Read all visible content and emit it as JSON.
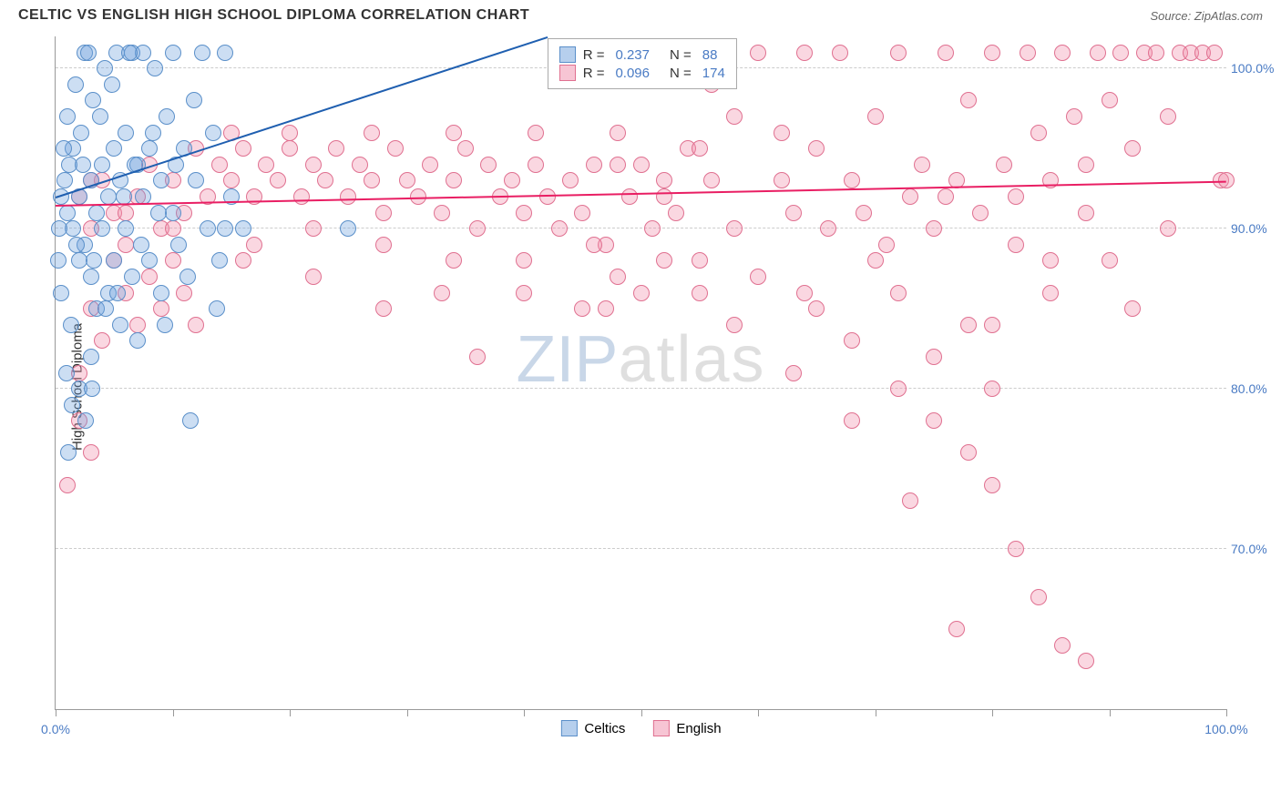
{
  "header": {
    "title": "CELTIC VS ENGLISH HIGH SCHOOL DIPLOMA CORRELATION CHART",
    "source": "Source: ZipAtlas.com"
  },
  "chart": {
    "type": "scatter",
    "ylabel": "High School Diploma",
    "xlim": [
      0,
      100
    ],
    "ylim": [
      60,
      102
    ],
    "ytick_values": [
      70,
      80,
      90,
      100
    ],
    "ytick_labels": [
      "70.0%",
      "80.0%",
      "90.0%",
      "100.0%"
    ],
    "xtick_positions": [
      0,
      10,
      20,
      30,
      40,
      50,
      60,
      70,
      80,
      90,
      100
    ],
    "xtick_labels_shown": {
      "0": "0.0%",
      "100": "100.0%"
    },
    "background_color": "#ffffff",
    "grid_color": "#cccccc",
    "axis_color": "#999999",
    "tick_label_color": "#4a7bc4",
    "marker_radius": 9,
    "marker_opacity": 0.5,
    "watermark": {
      "part1": "ZIP",
      "part2": "atlas"
    }
  },
  "series": {
    "celtics": {
      "label": "Celtics",
      "color_fill": "rgba(110,160,220,0.35)",
      "color_stroke": "#5a8fc9",
      "trend_color": "#1f5fb0",
      "R": "0.237",
      "N": "88",
      "trend": {
        "x1": 0,
        "y1": 92,
        "x2": 42,
        "y2": 102
      },
      "points": [
        [
          0.5,
          92
        ],
        [
          0.8,
          93
        ],
        [
          1,
          91
        ],
        [
          1.2,
          94
        ],
        [
          1.5,
          90
        ],
        [
          1.5,
          95
        ],
        [
          2,
          92
        ],
        [
          2,
          88
        ],
        [
          2.2,
          96
        ],
        [
          2.5,
          89
        ],
        [
          2.5,
          101
        ],
        [
          3,
          93
        ],
        [
          3,
          87
        ],
        [
          3.2,
          98
        ],
        [
          3.5,
          91
        ],
        [
          3.5,
          85
        ],
        [
          4,
          94
        ],
        [
          4,
          90
        ],
        [
          4.2,
          100
        ],
        [
          4.5,
          92
        ],
        [
          4.5,
          86
        ],
        [
          5,
          95
        ],
        [
          5,
          88
        ],
        [
          5.2,
          101
        ],
        [
          5.5,
          93
        ],
        [
          5.5,
          84
        ],
        [
          6,
          96
        ],
        [
          6,
          90
        ],
        [
          6.5,
          87
        ],
        [
          6.5,
          101
        ],
        [
          7,
          94
        ],
        [
          7,
          83
        ],
        [
          7.5,
          92
        ],
        [
          7.5,
          101
        ],
        [
          8,
          95
        ],
        [
          8,
          88
        ],
        [
          8.5,
          100
        ],
        [
          9,
          93
        ],
        [
          9,
          86
        ],
        [
          9.5,
          97
        ],
        [
          10,
          91
        ],
        [
          10,
          101
        ],
        [
          10.5,
          89
        ],
        [
          11,
          95
        ],
        [
          11.5,
          78
        ],
        [
          12,
          93
        ],
        [
          12.5,
          101
        ],
        [
          13,
          90
        ],
        [
          13.5,
          96
        ],
        [
          14,
          88
        ],
        [
          14.5,
          101
        ],
        [
          15,
          92
        ],
        [
          16,
          90
        ],
        [
          2,
          80
        ],
        [
          3,
          82
        ],
        [
          1,
          97
        ],
        [
          0.5,
          86
        ],
        [
          1.8,
          89
        ],
        [
          2.3,
          94
        ],
        [
          3.8,
          97
        ],
        [
          4.3,
          85
        ],
        [
          5.8,
          92
        ],
        [
          6.3,
          101
        ],
        [
          7.3,
          89
        ],
        [
          8.3,
          96
        ],
        [
          9.3,
          84
        ],
        [
          10.3,
          94
        ],
        [
          11.3,
          87
        ],
        [
          2.8,
          101
        ],
        [
          1.3,
          84
        ],
        [
          0.3,
          90
        ],
        [
          0.7,
          95
        ],
        [
          1.7,
          99
        ],
        [
          3.3,
          88
        ],
        [
          4.8,
          99
        ],
        [
          5.3,
          86
        ],
        [
          6.8,
          94
        ],
        [
          8.8,
          91
        ],
        [
          11.8,
          98
        ],
        [
          13.8,
          85
        ],
        [
          0.2,
          88
        ],
        [
          0.9,
          81
        ],
        [
          1.4,
          79
        ],
        [
          14.5,
          90
        ],
        [
          25,
          90
        ],
        [
          2.6,
          78
        ],
        [
          1.1,
          76
        ],
        [
          3.1,
          80
        ]
      ]
    },
    "english": {
      "label": "English",
      "color_fill": "rgba(240,140,170,0.35)",
      "color_stroke": "#e07090",
      "trend_color": "#e91e63",
      "R": "0.096",
      "N": "174",
      "trend": {
        "x1": 0,
        "y1": 91.5,
        "x2": 100,
        "y2": 93
      },
      "points": [
        [
          2,
          92
        ],
        [
          3,
          90
        ],
        [
          4,
          93
        ],
        [
          5,
          91
        ],
        [
          6,
          89
        ],
        [
          7,
          92
        ],
        [
          8,
          94
        ],
        [
          9,
          90
        ],
        [
          10,
          93
        ],
        [
          11,
          91
        ],
        [
          12,
          95
        ],
        [
          13,
          92
        ],
        [
          14,
          94
        ],
        [
          15,
          93
        ],
        [
          16,
          95
        ],
        [
          17,
          92
        ],
        [
          18,
          94
        ],
        [
          19,
          93
        ],
        [
          20,
          95
        ],
        [
          21,
          92
        ],
        [
          22,
          94
        ],
        [
          23,
          93
        ],
        [
          24,
          95
        ],
        [
          25,
          92
        ],
        [
          26,
          94
        ],
        [
          27,
          93
        ],
        [
          28,
          91
        ],
        [
          29,
          95
        ],
        [
          30,
          93
        ],
        [
          31,
          92
        ],
        [
          32,
          94
        ],
        [
          33,
          91
        ],
        [
          34,
          93
        ],
        [
          35,
          95
        ],
        [
          36,
          90
        ],
        [
          37,
          94
        ],
        [
          38,
          92
        ],
        [
          39,
          93
        ],
        [
          40,
          91
        ],
        [
          36,
          82
        ],
        [
          41,
          94
        ],
        [
          42,
          92
        ],
        [
          43,
          90
        ],
        [
          44,
          93
        ],
        [
          45,
          91
        ],
        [
          46,
          94
        ],
        [
          47,
          89
        ],
        [
          48,
          96
        ],
        [
          49,
          92
        ],
        [
          50,
          94
        ],
        [
          51,
          90
        ],
        [
          52,
          93
        ],
        [
          53,
          91
        ],
        [
          54,
          95
        ],
        [
          55,
          88
        ],
        [
          56,
          93
        ],
        [
          50,
          86
        ],
        [
          47,
          85
        ],
        [
          58,
          97
        ],
        [
          60,
          101
        ],
        [
          62,
          93
        ],
        [
          63,
          91
        ],
        [
          64,
          101
        ],
        [
          65,
          95
        ],
        [
          66,
          90
        ],
        [
          67,
          101
        ],
        [
          68,
          93
        ],
        [
          69,
          91
        ],
        [
          70,
          97
        ],
        [
          71,
          89
        ],
        [
          72,
          101
        ],
        [
          73,
          92
        ],
        [
          74,
          94
        ],
        [
          75,
          90
        ],
        [
          76,
          101
        ],
        [
          77,
          93
        ],
        [
          78,
          98
        ],
        [
          79,
          91
        ],
        [
          80,
          101
        ],
        [
          81,
          94
        ],
        [
          82,
          92
        ],
        [
          83,
          101
        ],
        [
          84,
          96
        ],
        [
          85,
          93
        ],
        [
          86,
          101
        ],
        [
          87,
          97
        ],
        [
          88,
          94
        ],
        [
          89,
          101
        ],
        [
          90,
          98
        ],
        [
          91,
          101
        ],
        [
          92,
          95
        ],
        [
          93,
          101
        ],
        [
          94,
          101
        ],
        [
          95,
          97
        ],
        [
          96,
          101
        ],
        [
          97,
          101
        ],
        [
          98,
          101
        ],
        [
          99,
          101
        ],
        [
          99.5,
          93
        ],
        [
          85,
          88
        ],
        [
          78,
          84
        ],
        [
          72,
          86
        ],
        [
          68,
          83
        ],
        [
          65,
          85
        ],
        [
          60,
          87
        ],
        [
          58,
          84
        ],
        [
          55,
          86
        ],
        [
          52,
          88
        ],
        [
          48,
          87
        ],
        [
          45,
          85
        ],
        [
          72,
          80
        ],
        [
          75,
          78
        ],
        [
          78,
          76
        ],
        [
          80,
          74
        ],
        [
          73,
          73
        ],
        [
          82,
          70
        ],
        [
          84,
          67
        ],
        [
          86,
          64
        ],
        [
          77,
          65
        ],
        [
          88,
          63
        ],
        [
          3,
          85
        ],
        [
          4,
          83
        ],
        [
          5,
          88
        ],
        [
          6,
          86
        ],
        [
          7,
          84
        ],
        [
          8,
          87
        ],
        [
          2,
          78
        ],
        [
          3,
          76
        ],
        [
          1,
          74
        ],
        [
          2,
          81
        ],
        [
          9,
          85
        ],
        [
          10,
          88
        ],
        [
          11,
          86
        ],
        [
          12,
          84
        ],
        [
          56,
          99
        ],
        [
          40,
          88
        ],
        [
          33,
          86
        ],
        [
          28,
          89
        ],
        [
          22,
          87
        ],
        [
          17,
          89
        ],
        [
          62,
          96
        ],
        [
          55,
          95
        ],
        [
          48,
          94
        ],
        [
          41,
          96
        ],
        [
          34,
          96
        ],
        [
          27,
          96
        ],
        [
          20,
          96
        ],
        [
          15,
          96
        ],
        [
          88,
          91
        ],
        [
          82,
          89
        ],
        [
          76,
          92
        ],
        [
          70,
          88
        ],
        [
          64,
          86
        ],
        [
          58,
          90
        ],
        [
          52,
          92
        ],
        [
          46,
          89
        ],
        [
          40,
          86
        ],
        [
          34,
          88
        ],
        [
          28,
          85
        ],
        [
          22,
          90
        ],
        [
          16,
          88
        ],
        [
          10,
          90
        ],
        [
          6,
          91
        ],
        [
          3,
          93
        ],
        [
          100,
          93
        ],
        [
          95,
          90
        ],
        [
          90,
          88
        ],
        [
          85,
          86
        ],
        [
          80,
          84
        ],
        [
          92,
          85
        ],
        [
          68,
          78
        ],
        [
          63,
          81
        ],
        [
          80,
          80
        ],
        [
          75,
          82
        ]
      ]
    }
  },
  "top_legend": {
    "rows": [
      {
        "swatch_fill": "rgba(110,160,220,0.5)",
        "swatch_stroke": "#5a8fc9",
        "r_label": "R =",
        "r_val": "0.237",
        "n_label": "N =",
        "n_val": "88"
      },
      {
        "swatch_fill": "rgba(240,140,170,0.5)",
        "swatch_stroke": "#e07090",
        "r_label": "R =",
        "r_val": "0.096",
        "n_label": "N =",
        "n_val": "174"
      }
    ]
  },
  "bottom_legend": {
    "items": [
      {
        "swatch_fill": "rgba(110,160,220,0.5)",
        "swatch_stroke": "#5a8fc9",
        "label": "Celtics"
      },
      {
        "swatch_fill": "rgba(240,140,170,0.5)",
        "swatch_stroke": "#e07090",
        "label": "English"
      }
    ]
  }
}
